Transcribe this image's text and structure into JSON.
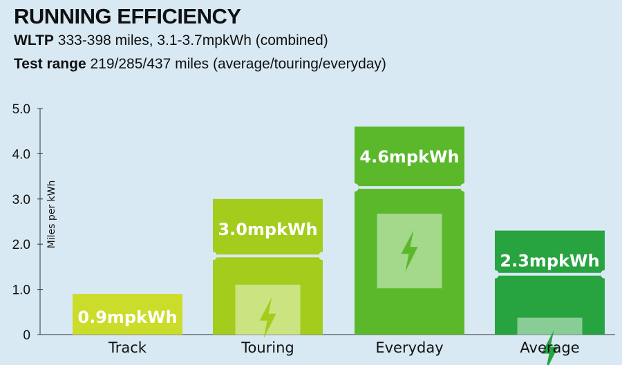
{
  "header": {
    "title": "RUNNING EFFICIENCY",
    "line1_label": "WLTP",
    "line1_text": "333-398 miles, 3.1-3.7mpkWh (combined)",
    "line2_label": "Test range",
    "line2_text": "219/285/437 miles (average/touring/everyday)"
  },
  "chart_data": {
    "type": "bar",
    "title": "RUNNING EFFICIENCY",
    "ylabel": "Miles per kWh",
    "xlabel": "",
    "ylim": [
      0,
      5.0
    ],
    "yticks": [
      "0",
      "1.0",
      "2.0",
      "3.0",
      "4.0",
      "5.0"
    ],
    "grid": false,
    "categories": [
      "Track",
      "Touring",
      "Everyday",
      "Average"
    ],
    "values": [
      0.9,
      3.0,
      4.6,
      2.3
    ],
    "data_labels": [
      "0.9mpkWh",
      "3.0mpkWh",
      "4.6mpkWh",
      "2.3mpkWh"
    ],
    "colors": [
      "#cbdc2a",
      "#a3cc1d",
      "#5ab82a",
      "#27a340"
    ],
    "icon": "lightning-bolt-icon"
  }
}
